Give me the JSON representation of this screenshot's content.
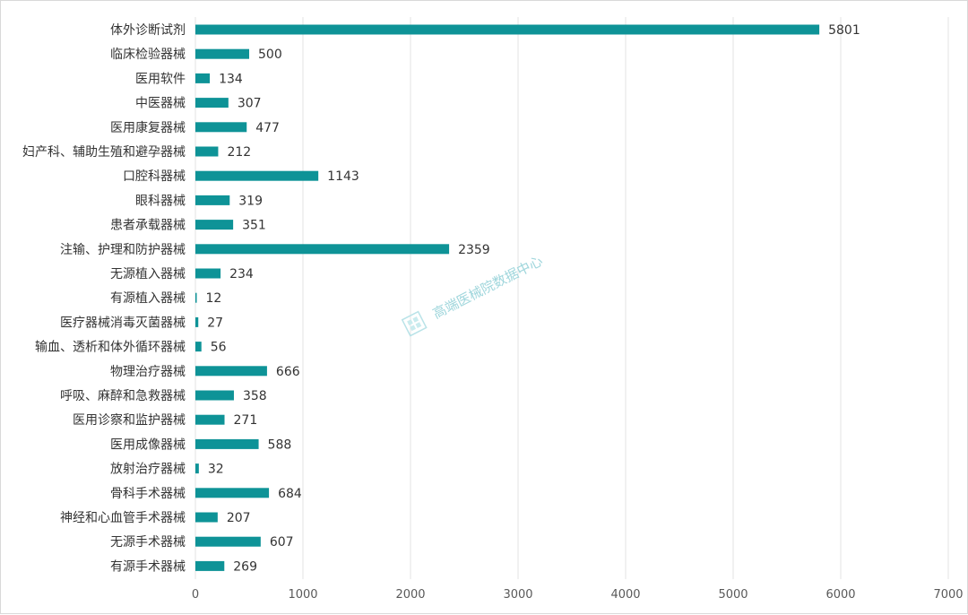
{
  "chart_data": {
    "type": "bar",
    "orientation": "horizontal",
    "title": "",
    "xlabel": "",
    "ylabel": "",
    "xlim": [
      0,
      7000
    ],
    "ticks": [
      0,
      1000,
      2000,
      3000,
      4000,
      5000,
      6000,
      7000
    ],
    "grid": true,
    "bar_color": "#0e9397",
    "categories": [
      "体外诊断试剂",
      "临床检验器械",
      "医用软件",
      "中医器械",
      "医用康复器械",
      "妇产科、辅助生殖和避孕器械",
      "口腔科器械",
      "眼科器械",
      "患者承载器械",
      "注输、护理和防护器械",
      "无源植入器械",
      "有源植入器械",
      "医疗器械消毒灭菌器械",
      "输血、透析和体外循环器械",
      "物理治疗器械",
      "呼吸、麻醉和急救器械",
      "医用诊察和监护器械",
      "医用成像器械",
      "放射治疗器械",
      "骨科手术器械",
      "神经和心血管手术器械",
      "无源手术器械",
      "有源手术器械"
    ],
    "values": [
      5801,
      500,
      134,
      307,
      477,
      212,
      1143,
      319,
      351,
      2359,
      234,
      12,
      27,
      56,
      666,
      358,
      271,
      588,
      32,
      684,
      207,
      607,
      269
    ]
  },
  "watermark": {
    "text": "高端医械院数据中心",
    "icon": "cube-logo-icon",
    "color": "#9fd6dc"
  }
}
